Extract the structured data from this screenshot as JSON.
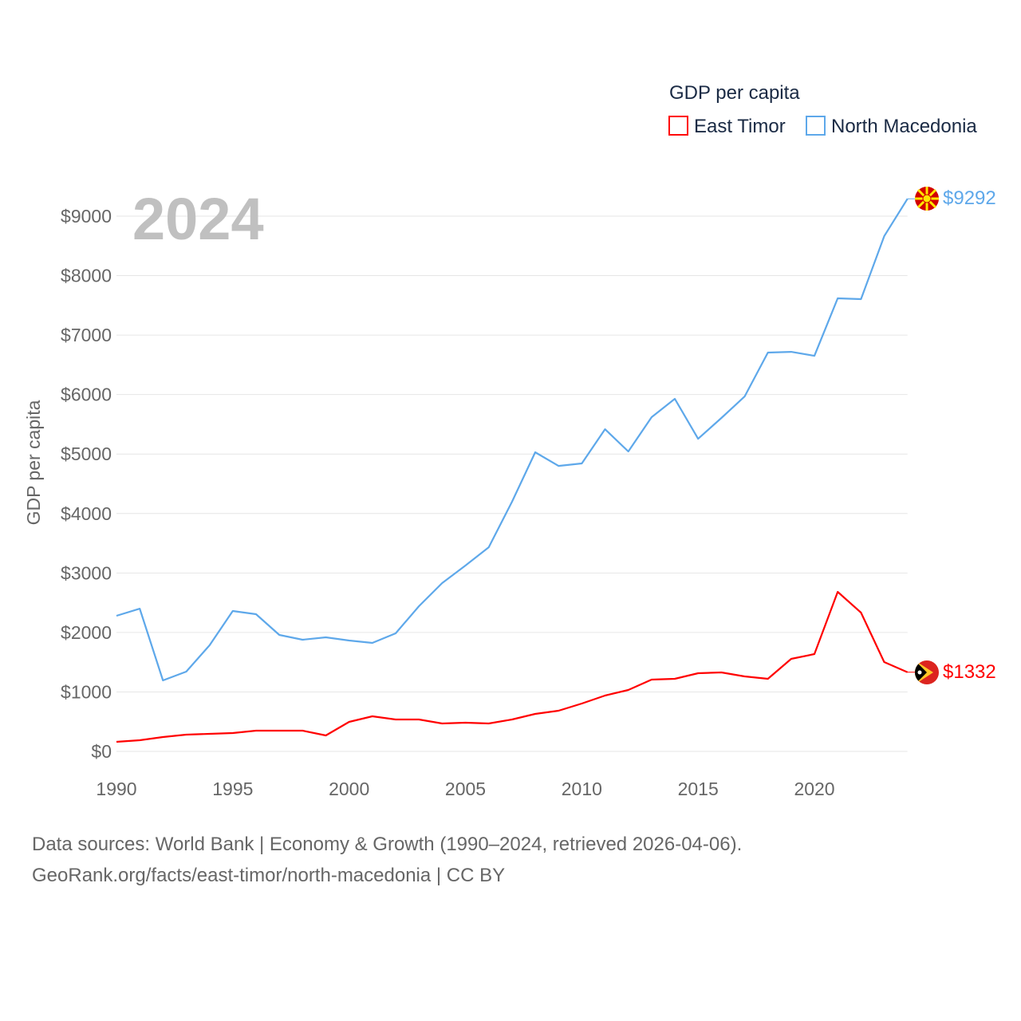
{
  "chart_data": {
    "type": "line",
    "title": "GDP per capita",
    "year_label": "2024",
    "xlabel": "",
    "ylabel": "GDP per capita",
    "xlim": [
      1990,
      2024
    ],
    "ylim": [
      0,
      9000
    ],
    "x_ticks": [
      1990,
      1995,
      2000,
      2005,
      2010,
      2015,
      2020
    ],
    "y_ticks": [
      0,
      1000,
      2000,
      3000,
      4000,
      5000,
      6000,
      7000,
      8000,
      9000
    ],
    "y_tick_labels": [
      "$0",
      "$1000",
      "$2000",
      "$3000",
      "$4000",
      "$5000",
      "$6000",
      "$7000",
      "$8000",
      "$9000"
    ],
    "grid": true,
    "legend_position": "top-right",
    "x": [
      1990,
      1991,
      1992,
      1993,
      1994,
      1995,
      1996,
      1997,
      1998,
      1999,
      2000,
      2001,
      2002,
      2003,
      2004,
      2005,
      2006,
      2007,
      2008,
      2009,
      2010,
      2011,
      2012,
      2013,
      2014,
      2015,
      2016,
      2017,
      2018,
      2019,
      2020,
      2021,
      2022,
      2023,
      2024
    ],
    "series": [
      {
        "name": "East Timor",
        "color": "#ff0000",
        "end_label": "$1332",
        "values": [
          161,
          188,
          241,
          282,
          295,
          308,
          349,
          349,
          349,
          268,
          496,
          590,
          536,
          536,
          469,
          483,
          469,
          536,
          630,
          684,
          805,
          939,
          1033,
          1207,
          1220,
          1314,
          1328,
          1261,
          1220,
          1556,
          1636,
          2682,
          2334,
          1502,
          1332
        ]
      },
      {
        "name": "North Macedonia",
        "color": "#5ea8ea",
        "end_label": "$9292",
        "values": [
          2280,
          2400,
          1194,
          1341,
          1784,
          2360,
          2307,
          1958,
          1878,
          1918,
          1864,
          1824,
          1985,
          2441,
          2830,
          3125,
          3433,
          4198,
          5030,
          4801,
          4842,
          5418,
          5043,
          5620,
          5928,
          5257,
          5606,
          5968,
          6706,
          6719,
          6652,
          7618,
          7605,
          8664,
          9292
        ]
      }
    ]
  },
  "footer": {
    "line1": "Data sources: World Bank | Economy & Growth (1990–2024, retrieved 2026-04-06).",
    "line2": "GeoRank.org/facts/east-timor/north-macedonia | CC BY"
  }
}
